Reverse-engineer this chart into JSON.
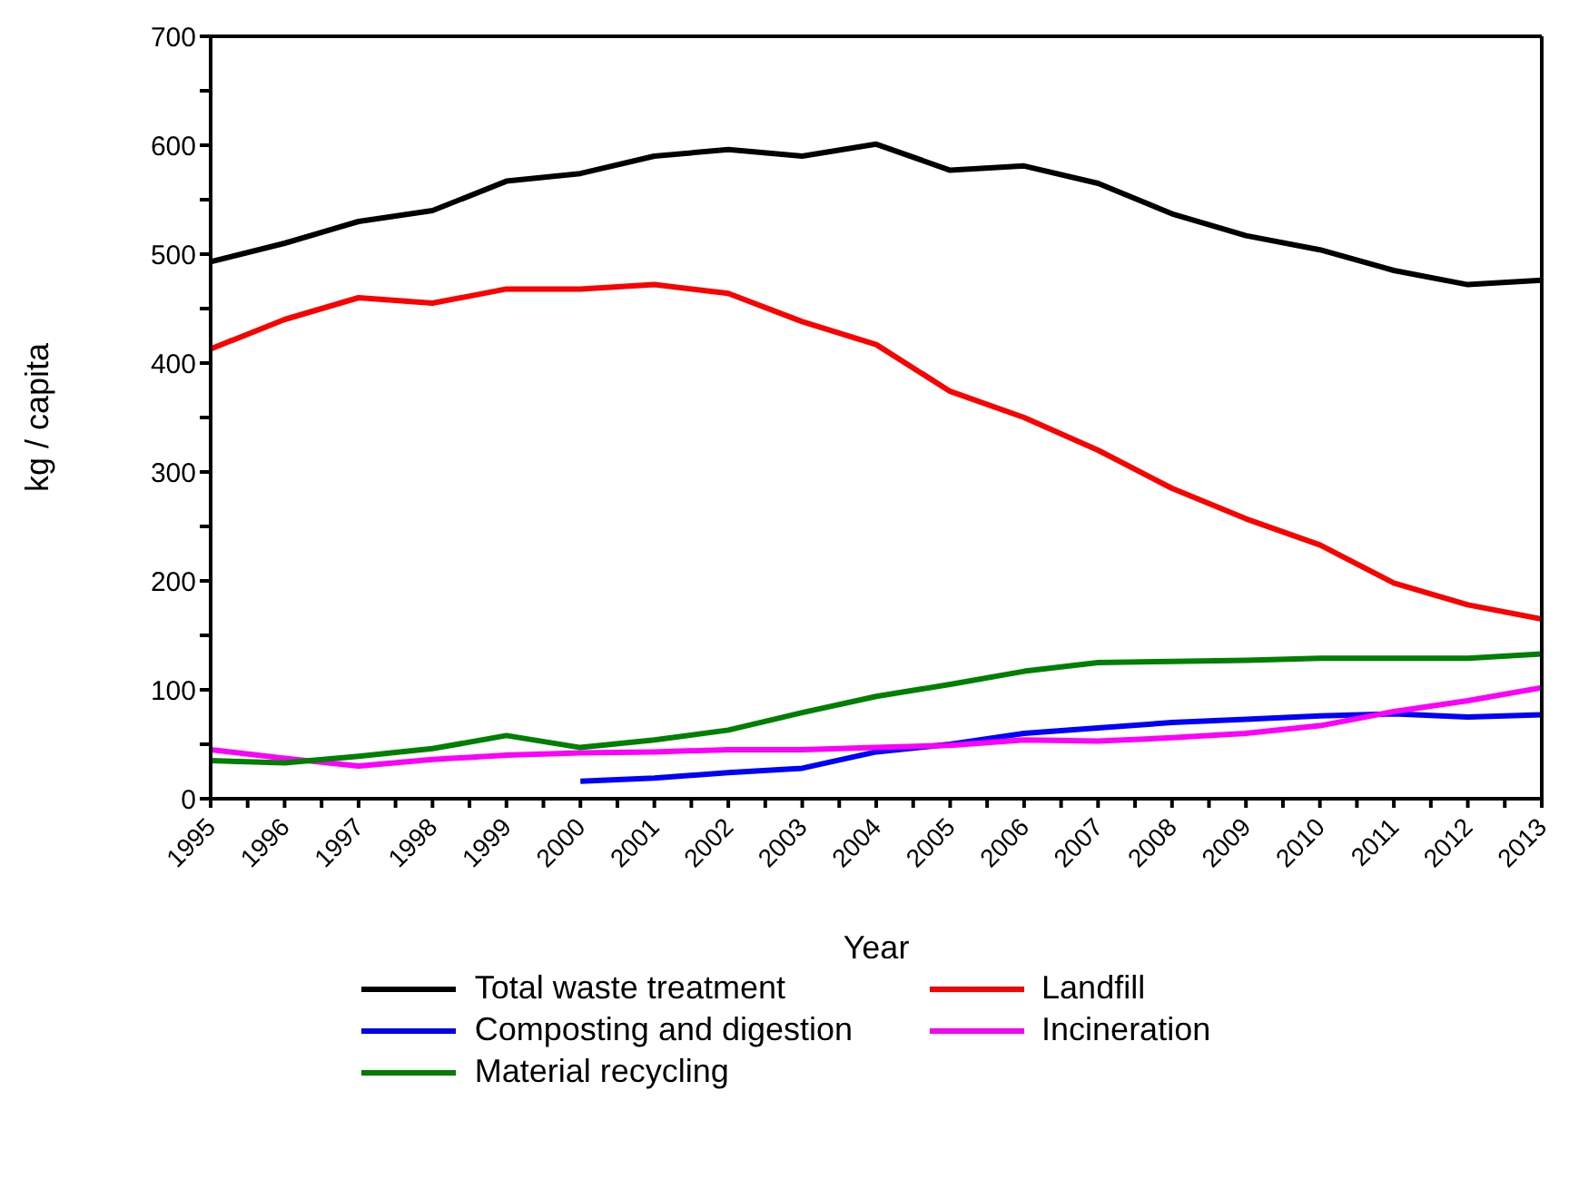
{
  "chart_data": {
    "type": "line",
    "xlabel": "Year",
    "ylabel": "kg / capita",
    "x": [
      1995,
      1996,
      1997,
      1998,
      1999,
      2000,
      2001,
      2002,
      2003,
      2004,
      2005,
      2006,
      2007,
      2008,
      2009,
      2010,
      2011,
      2012,
      2013
    ],
    "xlim": [
      1995,
      2013
    ],
    "xticks": [
      1995,
      {
        "value": 1995.5,
        "label": null
      },
      1996,
      {
        "value": 1996.5,
        "label": null
      },
      1997,
      {
        "value": 1997.5,
        "label": null
      },
      1998,
      {
        "value": 1998.5,
        "label": null
      },
      1999,
      {
        "value": 1999.5,
        "label": null
      },
      2000,
      {
        "value": 2000.5,
        "label": null
      },
      2001,
      {
        "value": 2001.5,
        "label": null
      },
      2002,
      {
        "value": 2002.5,
        "label": null
      },
      2003,
      {
        "value": 2003.5,
        "label": null
      },
      2004,
      {
        "value": 2004.5,
        "label": null
      },
      2005,
      {
        "value": 2005.5,
        "label": null
      },
      2006,
      {
        "value": 2006.5,
        "label": null
      },
      2007,
      {
        "value": 2007.5,
        "label": null
      },
      2008,
      {
        "value": 2008.5,
        "label": null
      },
      2009,
      {
        "value": 2009.5,
        "label": null
      },
      2010,
      {
        "value": 2010.5,
        "label": null
      },
      2011,
      {
        "value": 2011.5,
        "label": null
      },
      2012,
      {
        "value": 2012.5,
        "label": null
      },
      2013
    ],
    "ylim": [
      0,
      700
    ],
    "yticks": [
      0,
      {
        "value": 50,
        "label": null
      },
      100,
      {
        "value": 150,
        "label": null
      },
      200,
      {
        "value": 250,
        "label": null
      },
      300,
      {
        "value": 350,
        "label": null
      },
      400,
      {
        "value": 450,
        "label": null
      },
      500,
      {
        "value": 550,
        "label": null
      },
      600,
      {
        "value": 650,
        "label": null
      },
      700
    ],
    "grid": false,
    "legend": "bottom",
    "marker": "none",
    "line_style": "solid",
    "series": [
      {
        "name": "Total waste treatment",
        "color": "#000000",
        "values": [
          493,
          510,
          530,
          540,
          567,
          574,
          590,
          596,
          590,
          601,
          577,
          581,
          565,
          537,
          517,
          504,
          485,
          472,
          476
        ]
      },
      {
        "name": "Landfill",
        "color": "#ff0000",
        "values": [
          413,
          440,
          460,
          455,
          468,
          468,
          472,
          464,
          438,
          417,
          374,
          350,
          320,
          285,
          257,
          233,
          198,
          178,
          165
        ]
      },
      {
        "name": "Composting and digestion",
        "color": "#0000ff",
        "values": [
          null,
          null,
          null,
          null,
          null,
          16,
          19,
          24,
          28,
          43,
          50,
          60,
          65,
          70,
          73,
          76,
          78,
          75,
          77
        ]
      },
      {
        "name": "Incineration",
        "color": "#ff00ff",
        "values": [
          45,
          37,
          30,
          36,
          40,
          42,
          43,
          45,
          45,
          47,
          49,
          54,
          53,
          56,
          60,
          67,
          80,
          90,
          102
        ]
      },
      {
        "name": "Material recycling",
        "color": "#008000",
        "values": [
          35,
          33,
          39,
          46,
          58,
          47,
          54,
          63,
          79,
          94,
          105,
          117,
          125,
          126,
          127,
          129,
          129,
          129,
          133
        ]
      }
    ]
  }
}
